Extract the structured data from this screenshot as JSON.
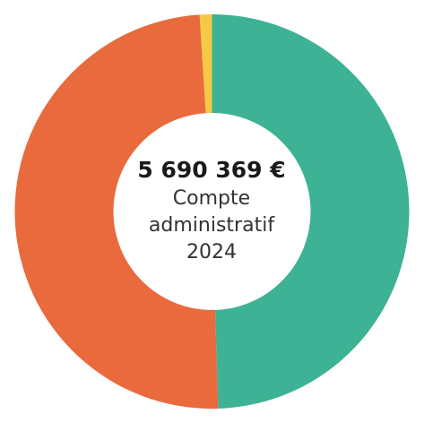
{
  "chart_data": {
    "type": "pie",
    "style": "donut",
    "slices": [
      {
        "value": 49.5,
        "color": "#3db294"
      },
      {
        "value": 49.5,
        "color": "#e86a3d"
      },
      {
        "value": 1.0,
        "color": "#f6c944"
      }
    ],
    "center": {
      "total": "5 690 369 €",
      "line1": "Compte",
      "line2": "administratif",
      "line3": "2024"
    }
  }
}
